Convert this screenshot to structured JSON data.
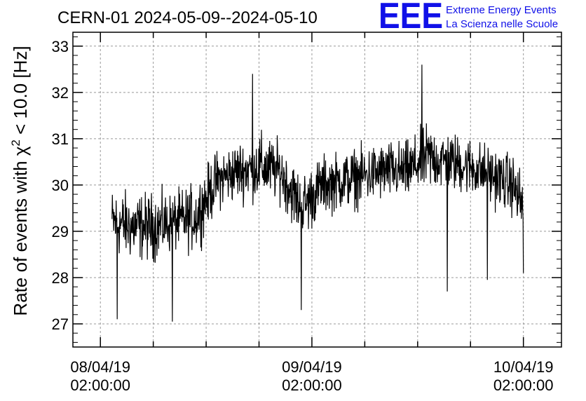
{
  "header": {
    "title": "CERN-01 2024-05-09--2024-05-10",
    "logo_text": "EEE",
    "logo_line1": "Extreme Energy Events",
    "logo_line2": "La Scienza nelle Scuole",
    "logo_color": "#1010e8"
  },
  "chart_data": {
    "type": "line",
    "ylabel_prefix": "Rate of events with ",
    "ylabel_symbol": "χ",
    "ylabel_sup": "2",
    "ylabel_suffix": " < 10.0 [Hz]",
    "ylim": [
      26.5,
      33.3
    ],
    "yticks": [
      27,
      28,
      29,
      30,
      31,
      32,
      33
    ],
    "xlim": [
      -0.13,
      2.18
    ],
    "xticks": [
      {
        "value": 0,
        "line1": "08/04/19",
        "line2": "02:00:00"
      },
      {
        "value": 1,
        "line1": "09/04/19",
        "line2": "02:00:00"
      },
      {
        "value": 2,
        "line1": "10/04/19",
        "line2": "02:00:00"
      }
    ],
    "grid": true,
    "line_color": "#000000",
    "series_envelope": {
      "x": [
        0.06,
        0.15,
        0.25,
        0.35,
        0.45,
        0.55,
        0.65,
        0.75,
        0.85,
        0.95,
        1.05,
        1.15,
        1.25,
        1.35,
        1.45,
        1.55,
        1.65,
        1.75,
        1.85,
        1.95,
        1.99
      ],
      "mean": [
        29.2,
        29.1,
        29.1,
        29.2,
        29.3,
        30.1,
        30.3,
        30.4,
        30.3,
        29.5,
        30.0,
        30.1,
        30.2,
        30.3,
        30.3,
        30.6,
        30.5,
        30.4,
        30.2,
        30.0,
        29.6
      ],
      "spread": [
        0.8,
        0.8,
        0.8,
        0.7,
        0.8,
        0.7,
        0.7,
        0.8,
        0.7,
        0.8,
        0.7,
        0.7,
        0.7,
        0.7,
        0.7,
        0.8,
        0.7,
        0.7,
        0.7,
        0.7,
        0.8
      ]
    },
    "extremes": [
      {
        "x": 0.08,
        "y": 27.1
      },
      {
        "x": 0.34,
        "y": 27.05
      },
      {
        "x": 0.72,
        "y": 32.4
      },
      {
        "x": 0.95,
        "y": 27.3
      },
      {
        "x": 1.52,
        "y": 32.6
      },
      {
        "x": 1.64,
        "y": 27.7
      },
      {
        "x": 1.83,
        "y": 27.95
      },
      {
        "x": 2.0,
        "y": 28.1
      }
    ],
    "x_start": 0.055,
    "x_end": 2.0
  }
}
